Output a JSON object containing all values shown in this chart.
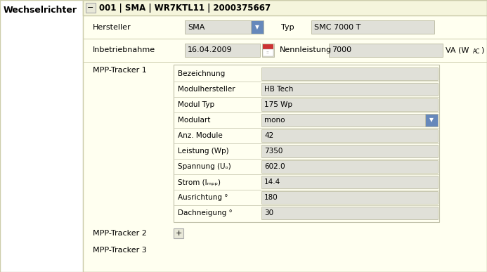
{
  "bg_white": "#ffffff",
  "bg_yellow": "#fffff0",
  "bg_header_yellow": "#f5f5dc",
  "bg_field": "#e0e0d8",
  "border_outer": "#ccccaa",
  "border_inner": "#c0c0a8",
  "title": "Wechselrichter",
  "header_text": "001 | SMA | WR7KTL11 | 2000375667",
  "hersteller_label": "Hersteller",
  "hersteller_value": "SMA",
  "typ_label": "Typ",
  "typ_value": "SMC 7000 T",
  "inbetrieb_label": "Inbetriebnahme",
  "inbetrieb_value": "16.04.2009",
  "nennl_label": "Nennleistung",
  "nennl_value": "7000",
  "nennl_unit_main": "VA (W",
  "nennl_unit_sub": "AC",
  "nennl_unit_end": ")",
  "mpp1_label": "MPP-Tracker 1",
  "mpp2_label": "MPP-Tracker 2",
  "mpp3_label": "MPP-Tracker 3",
  "tracker_fields": [
    [
      "Bezeichnung",
      "",
      false
    ],
    [
      "Modulhersteller",
      "HB Tech",
      false
    ],
    [
      "Modul Typ",
      "175 Wp",
      false
    ],
    [
      "Modulart",
      "mono",
      true
    ],
    [
      "Anz. Module",
      "42",
      false
    ],
    [
      "Leistung (Wp)",
      "7350",
      false
    ],
    [
      "Spannung (Uₒ⁣)",
      "602.0",
      false
    ],
    [
      "Strom (Iₘₚₚ)",
      "14.4",
      false
    ],
    [
      "Ausrichtung °",
      "180",
      false
    ],
    [
      "Dachneigung °",
      "30",
      false
    ]
  ],
  "dropdown_arrow_color": "#6688bb",
  "plus_btn_bg": "#e8e8d8",
  "plus_btn_border": "#aaaaaa",
  "minus_btn_bg": "#e8e8d8",
  "minus_btn_border": "#aaaaaa"
}
